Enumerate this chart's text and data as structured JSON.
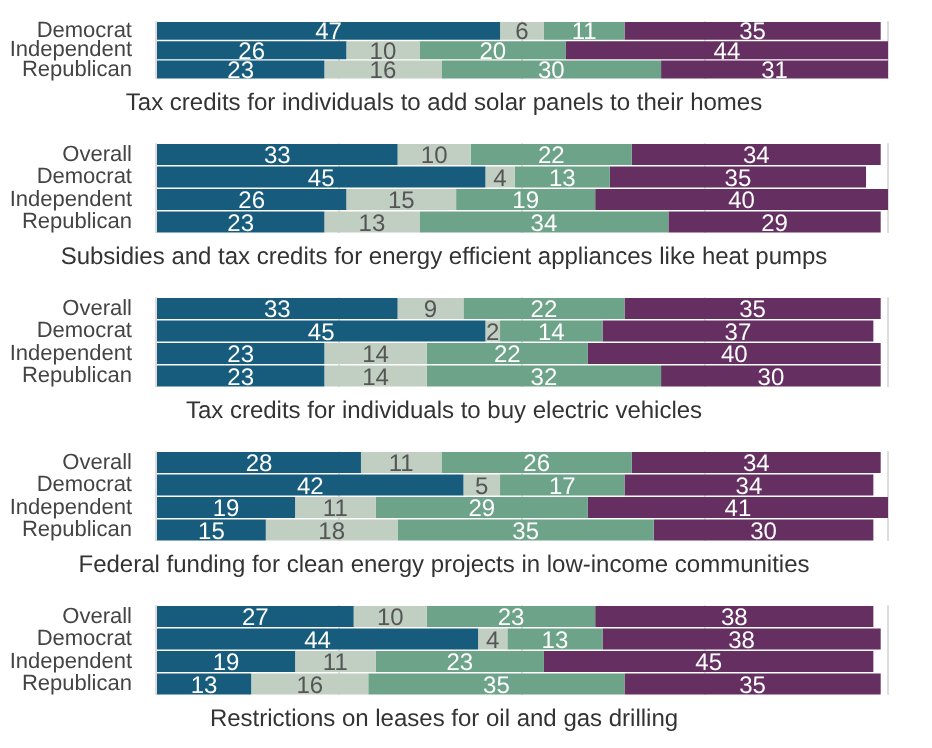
{
  "chart_data": [
    {
      "type": "bar",
      "orientation": "horizontal",
      "stacked": true,
      "title": "Tax credits for individuals to add solar panels to their homes",
      "categories": [
        "Democrat",
        "Independent",
        "Republican"
      ],
      "series": [
        {
          "color": "#175c7c",
          "values": [
            47,
            26,
            23
          ]
        },
        {
          "color": "#c0cfc2",
          "values": [
            6,
            10,
            16
          ]
        },
        {
          "color": "#6da388",
          "values": [
            11,
            20,
            30
          ]
        },
        {
          "color": "#652f62",
          "values": [
            35,
            44,
            31
          ]
        }
      ],
      "xlim": [
        0,
        100
      ],
      "xticks": [
        {
          "value": 0,
          "label": null
        },
        {
          "value": 25,
          "label": null
        },
        {
          "value": 50,
          "label": null
        },
        {
          "value": 75,
          "label": null
        },
        {
          "value": 100,
          "label": null
        }
      ],
      "grid": "x",
      "tick_labels": "y",
      "data_labels": true
    },
    {
      "type": "bar",
      "orientation": "horizontal",
      "stacked": true,
      "title": "Subsidies and tax credits for energy efficient appliances like heat pumps",
      "categories": [
        "Overall",
        "Democrat",
        "Independent",
        "Republican"
      ],
      "series": [
        {
          "color": "#175c7c",
          "values": [
            33,
            45,
            26,
            23
          ]
        },
        {
          "color": "#c0cfc2",
          "values": [
            10,
            4,
            15,
            13
          ]
        },
        {
          "color": "#6da388",
          "values": [
            22,
            13,
            19,
            34
          ]
        },
        {
          "color": "#652f62",
          "values": [
            34,
            35,
            40,
            29
          ]
        }
      ],
      "xlim": [
        0,
        100
      ],
      "xticks": [
        {
          "value": 0,
          "label": null
        },
        {
          "value": 25,
          "label": null
        },
        {
          "value": 50,
          "label": null
        },
        {
          "value": 75,
          "label": null
        },
        {
          "value": 100,
          "label": null
        }
      ],
      "grid": "x",
      "tick_labels": "y",
      "data_labels": true
    },
    {
      "type": "bar",
      "orientation": "horizontal",
      "stacked": true,
      "title": "Tax credits for individuals to buy electric vehicles",
      "categories": [
        "Overall",
        "Democrat",
        "Independent",
        "Republican"
      ],
      "series": [
        {
          "color": "#175c7c",
          "values": [
            33,
            45,
            23,
            23
          ]
        },
        {
          "color": "#c0cfc2",
          "values": [
            9,
            2,
            14,
            14
          ]
        },
        {
          "color": "#6da388",
          "values": [
            22,
            14,
            22,
            32
          ]
        },
        {
          "color": "#652f62",
          "values": [
            35,
            37,
            40,
            30
          ]
        }
      ],
      "xlim": [
        0,
        100
      ],
      "xticks": [
        {
          "value": 0,
          "label": null
        },
        {
          "value": 25,
          "label": null
        },
        {
          "value": 50,
          "label": null
        },
        {
          "value": 75,
          "label": null
        },
        {
          "value": 100,
          "label": null
        }
      ],
      "grid": "x",
      "tick_labels": "y",
      "data_labels": true
    },
    {
      "type": "bar",
      "orientation": "horizontal",
      "stacked": true,
      "title": "Federal funding for clean energy projects in low-income communities",
      "categories": [
        "Overall",
        "Democrat",
        "Independent",
        "Republican"
      ],
      "series": [
        {
          "color": "#175c7c",
          "values": [
            28,
            42,
            19,
            15
          ]
        },
        {
          "color": "#c0cfc2",
          "values": [
            11,
            5,
            11,
            18
          ]
        },
        {
          "color": "#6da388",
          "values": [
            26,
            17,
            29,
            35
          ]
        },
        {
          "color": "#652f62",
          "values": [
            34,
            34,
            41,
            30
          ]
        }
      ],
      "xlim": [
        0,
        100
      ],
      "xticks": [
        {
          "value": 0,
          "label": null
        },
        {
          "value": 25,
          "label": null
        },
        {
          "value": 50,
          "label": null
        },
        {
          "value": 75,
          "label": null
        },
        {
          "value": 100,
          "label": null
        }
      ],
      "grid": "x",
      "tick_labels": "y",
      "data_labels": true
    },
    {
      "type": "bar",
      "orientation": "horizontal",
      "stacked": true,
      "title": "Restrictions on leases for oil and gas drilling",
      "categories": [
        "Overall",
        "Democrat",
        "Independent",
        "Republican"
      ],
      "series": [
        {
          "color": "#175c7c",
          "values": [
            27,
            44,
            19,
            13
          ]
        },
        {
          "color": "#c0cfc2",
          "values": [
            10,
            4,
            11,
            16
          ]
        },
        {
          "color": "#6da388",
          "values": [
            23,
            13,
            23,
            35
          ]
        },
        {
          "color": "#652f62",
          "values": [
            38,
            38,
            45,
            35
          ]
        }
      ],
      "xlim": [
        0,
        100
      ],
      "xticks": [
        {
          "value": 0,
          "label": null
        },
        {
          "value": 25,
          "label": null
        },
        {
          "value": 50,
          "label": null
        },
        {
          "value": 75,
          "label": null
        },
        {
          "value": 100,
          "label": null
        }
      ],
      "grid": "x",
      "tick_labels": "y",
      "data_labels": true
    }
  ]
}
